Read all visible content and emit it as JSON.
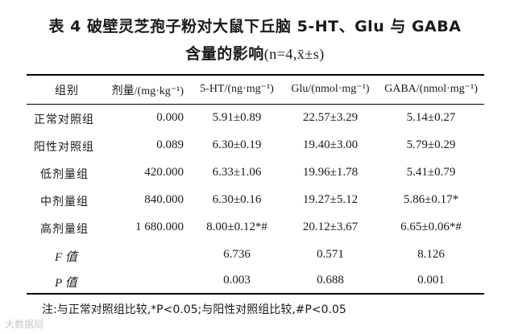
{
  "title": {
    "line1": "表 4  破壁灵芝孢子粉对大鼠下丘脑 5-HT、Glu 与 GABA",
    "line2_main": "含量的影响",
    "line2_sub": "(n=4,x̄±s)"
  },
  "table": {
    "headers": [
      "组别",
      "剂量/(mg·kg⁻¹)",
      "5-HT/(ng·mg⁻¹)",
      "Glu/(nmol·mg⁻¹)",
      "GABA/(nmol·mg⁻¹)"
    ],
    "rows": [
      [
        "正常对照组",
        "0.000",
        "5.91±0.89",
        "22.57±3.29",
        "5.14±0.27"
      ],
      [
        "阳性对照组",
        "0.089",
        "6.30±0.19",
        "19.40±3.00",
        "5.79±0.29"
      ],
      [
        "低剂量组",
        "420.000",
        "6.33±1.06",
        "19.96±1.78",
        "5.41±0.79"
      ],
      [
        "中剂量组",
        "840.000",
        "6.30±0.16",
        "19.27±5.12",
        "5.86±0.17*"
      ],
      [
        "高剂量组",
        "1 680.000",
        "8.00±0.12*#",
        "20.12±3.67",
        "6.65±0.06*#"
      ],
      [
        "F 值",
        "",
        "6.736",
        "0.571",
        "8.126"
      ],
      [
        "P 值",
        "",
        "0.003",
        "0.688",
        "0.001"
      ]
    ]
  },
  "note": "注:与正常对照组比较,*P<0.05;与阳性对照组比较,#P<0.05",
  "watermark": "大数据局"
}
